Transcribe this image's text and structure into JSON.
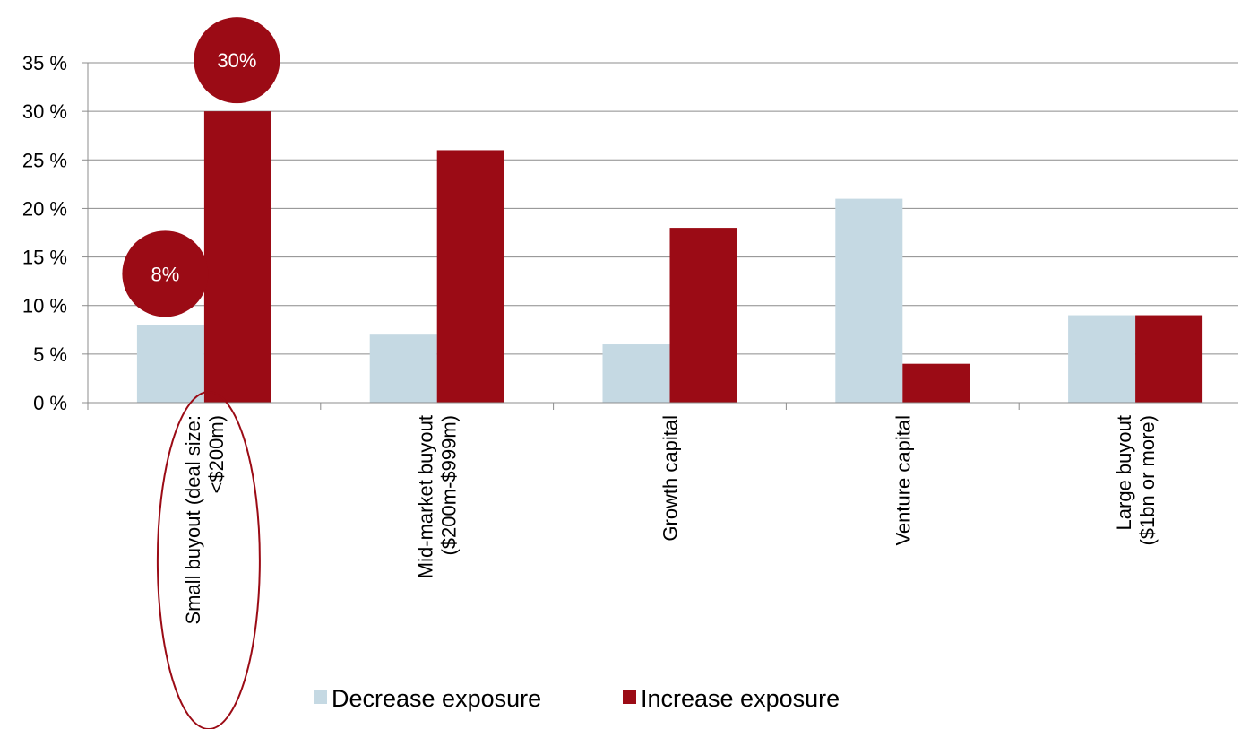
{
  "chart_data": {
    "type": "bar",
    "categories": [
      [
        "Small buyout (deal size:",
        "<$200m)"
      ],
      [
        "Mid-market buyout",
        "($200m-$999m)"
      ],
      [
        "Growth capital"
      ],
      [
        "Venture capital"
      ],
      [
        "Large buyout",
        "($1bn or more)"
      ]
    ],
    "series": [
      {
        "name": "Decrease exposure",
        "values": [
          8,
          7,
          6,
          21,
          9
        ],
        "color": "#c5d9e3"
      },
      {
        "name": "Increase exposure",
        "values": [
          30,
          26,
          18,
          4,
          9
        ],
        "color": "#9b0b15"
      }
    ],
    "y_ticks": [
      "0 %",
      "5 %",
      "10 %",
      "15 %",
      "20 %",
      "25 %",
      "30 %",
      "35 %"
    ],
    "ylim": [
      0,
      35
    ],
    "grid": true,
    "legend_position": "bottom",
    "callouts": [
      {
        "text": "8%",
        "category_index": 0,
        "series_index": 0
      },
      {
        "text": "30%",
        "category_index": 0,
        "series_index": 1
      }
    ],
    "highlight_category_index": 0,
    "accent_color": "#9b0b15"
  }
}
